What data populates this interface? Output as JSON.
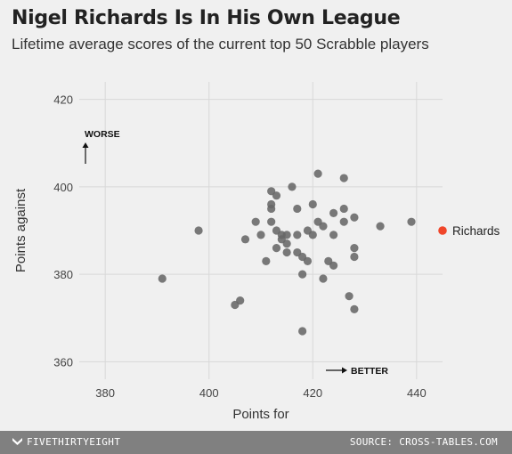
{
  "header": {
    "title": "Nigel Richards Is In His Own League",
    "subtitle": "Lifetime average scores of the current top 50 Scrabble players"
  },
  "footer": {
    "brand": "FIVETHIRTYEIGHT",
    "source": "SOURCE: CROSS-TABLES.COM"
  },
  "chart_data": {
    "type": "scatter",
    "title": "Nigel Richards Is In His Own League",
    "subtitle": "Lifetime average scores of the current top 50 Scrabble players",
    "xlabel": "Points for",
    "ylabel": "Points against",
    "xlim": [
      375,
      445
    ],
    "ylim": [
      356,
      424
    ],
    "xticks": [
      380,
      400,
      420,
      440
    ],
    "yticks": [
      360,
      380,
      400,
      420
    ],
    "grid": true,
    "annotations": {
      "worse": "WORSE",
      "better": "BETTER"
    },
    "highlight": {
      "label": "Richards",
      "x": 445,
      "y": 390,
      "color": "#f0462a"
    },
    "colors": {
      "points": "#666666",
      "grid": "#d8d8d8",
      "highlight": "#f0462a"
    },
    "points": [
      [
        391,
        379
      ],
      [
        398,
        390
      ],
      [
        405,
        373
      ],
      [
        406,
        374
      ],
      [
        407,
        388
      ],
      [
        409,
        392
      ],
      [
        410,
        389
      ],
      [
        411,
        383
      ],
      [
        412,
        399
      ],
      [
        412,
        396
      ],
      [
        412,
        395
      ],
      [
        412,
        392
      ],
      [
        413,
        398
      ],
      [
        413,
        390
      ],
      [
        413,
        386
      ],
      [
        414,
        389
      ],
      [
        414,
        388
      ],
      [
        415,
        389
      ],
      [
        415,
        387
      ],
      [
        415,
        385
      ],
      [
        416,
        400
      ],
      [
        417,
        395
      ],
      [
        417,
        389
      ],
      [
        417,
        385
      ],
      [
        418,
        384
      ],
      [
        418,
        380
      ],
      [
        418,
        367
      ],
      [
        419,
        390
      ],
      [
        419,
        383
      ],
      [
        420,
        396
      ],
      [
        420,
        389
      ],
      [
        421,
        403
      ],
      [
        421,
        392
      ],
      [
        422,
        391
      ],
      [
        422,
        379
      ],
      [
        423,
        383
      ],
      [
        424,
        394
      ],
      [
        424,
        389
      ],
      [
        424,
        382
      ],
      [
        426,
        402
      ],
      [
        426,
        395
      ],
      [
        426,
        392
      ],
      [
        427,
        375
      ],
      [
        428,
        393
      ],
      [
        428,
        386
      ],
      [
        428,
        384
      ],
      [
        428,
        372
      ],
      [
        433,
        391
      ],
      [
        439,
        392
      ]
    ]
  }
}
